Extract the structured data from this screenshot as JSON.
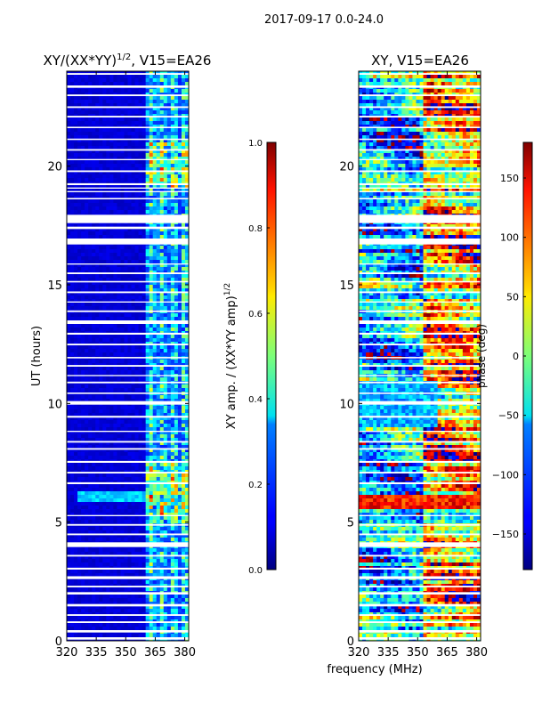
{
  "figure_title": "2017-09-17 0.0-24.0",
  "chart_data": [
    {
      "type": "heatmap",
      "title": "XY/(XX*YY)^{1/2}, V15=EA26",
      "title_main": "XY/(XX*YY)",
      "title_sup": "1/2",
      "title_tail": ", V15=EA26",
      "ylabel": "UT (hours)",
      "xlabel": "",
      "xlim": [
        320,
        382
      ],
      "ylim": [
        0,
        24
      ],
      "xticks": [
        320,
        335,
        350,
        365,
        380
      ],
      "yticks": [
        0,
        5,
        10,
        15,
        20
      ],
      "colorbar": {
        "label": "XY amp. / (XX*YY amp)^{1/2}",
        "label_main": "XY amp. / (XX*YY amp)",
        "label_sup": "1/2",
        "range": [
          0.0,
          1.0
        ],
        "ticks": [
          "0.0",
          "0.2",
          "0.4",
          "0.6",
          "0.8",
          "1.0"
        ],
        "tick_values": [
          0.0,
          0.2,
          0.4,
          0.6,
          0.8,
          1.0
        ],
        "colormap": "jet"
      },
      "active_band_mhz": [
        360,
        382
      ]
    },
    {
      "type": "heatmap",
      "title": "XY, V15=EA26",
      "ylabel": "",
      "xlabel": "frequency (MHz)",
      "xlim": [
        320,
        382
      ],
      "ylim": [
        0,
        24
      ],
      "xticks": [
        320,
        335,
        350,
        365,
        380
      ],
      "yticks": [
        0,
        5,
        10,
        15,
        20
      ],
      "colorbar": {
        "label": "phase (deg)",
        "range": [
          -180,
          180
        ],
        "ticks": [
          "−150",
          "−100",
          "−50",
          "0",
          "50",
          "100",
          "150"
        ],
        "tick_values": [
          -150,
          -100,
          -50,
          0,
          50,
          100,
          150
        ],
        "colormap": "jet"
      }
    }
  ],
  "flagged_gaps_hours": [
    [
      0.05,
      0.15
    ],
    [
      0.35,
      0.45
    ],
    [
      0.75,
      0.82
    ],
    [
      1.05,
      1.12
    ],
    [
      1.45,
      1.55
    ],
    [
      1.95,
      2.05
    ],
    [
      2.25,
      2.32
    ],
    [
      2.6,
      2.72
    ],
    [
      3.0,
      3.08
    ],
    [
      3.55,
      3.62
    ],
    [
      3.95,
      4.15
    ],
    [
      4.45,
      4.52
    ],
    [
      4.85,
      4.92
    ],
    [
      5.25,
      5.3
    ],
    [
      6.6,
      6.68
    ],
    [
      7.05,
      7.12
    ],
    [
      7.5,
      7.58
    ],
    [
      8.05,
      8.12
    ],
    [
      8.35,
      8.42
    ],
    [
      8.8,
      8.85
    ],
    [
      9.4,
      9.48
    ],
    [
      9.95,
      10.1
    ],
    [
      10.4,
      10.46
    ],
    [
      10.85,
      10.92
    ],
    [
      11.15,
      11.2
    ],
    [
      11.55,
      11.62
    ],
    [
      11.9,
      11.96
    ],
    [
      12.45,
      12.52
    ],
    [
      12.9,
      12.98
    ],
    [
      13.35,
      13.5
    ],
    [
      13.85,
      13.92
    ],
    [
      14.25,
      14.3
    ],
    [
      14.65,
      14.72
    ],
    [
      15.1,
      15.16
    ],
    [
      15.45,
      15.52
    ],
    [
      15.85,
      15.9
    ],
    [
      16.7,
      16.95
    ],
    [
      17.35,
      17.45
    ],
    [
      17.6,
      17.95
    ],
    [
      18.6,
      18.66
    ],
    [
      18.9,
      18.95
    ],
    [
      19.05,
      19.1
    ],
    [
      19.2,
      19.28
    ],
    [
      19.75,
      19.82
    ],
    [
      20.25,
      20.3
    ],
    [
      20.65,
      20.72
    ],
    [
      21.1,
      21.16
    ],
    [
      21.6,
      21.66
    ],
    [
      22.05,
      22.12
    ],
    [
      22.45,
      22.52
    ],
    [
      22.95,
      23.02
    ],
    [
      23.3,
      23.4
    ],
    [
      23.85,
      23.92
    ]
  ]
}
